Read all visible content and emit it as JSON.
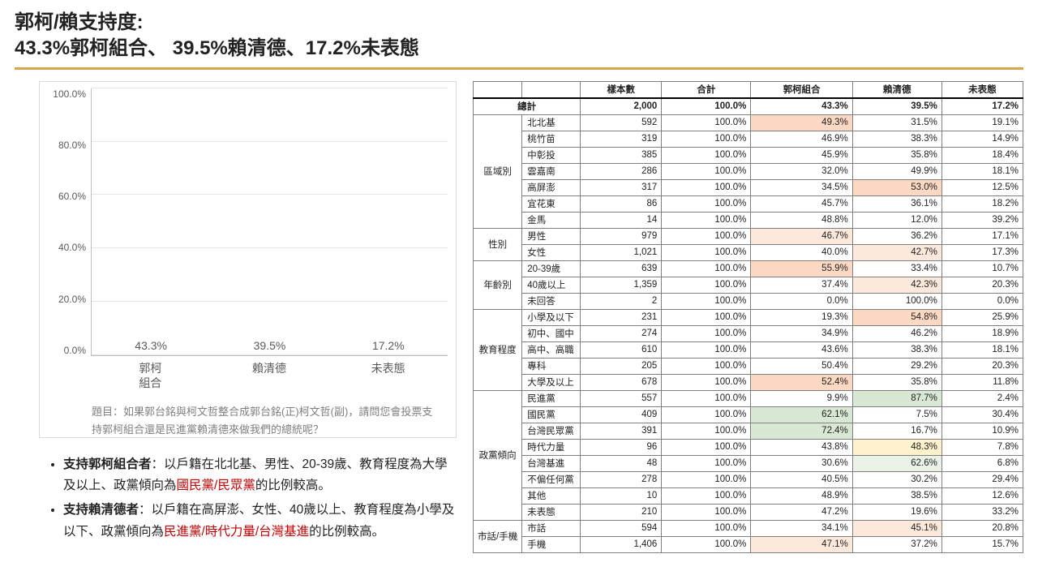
{
  "title_line1": "郭柯/賴支持度:",
  "title_line2": "43.3%郭柯組合、 39.5%賴清德、17.2%未表態",
  "chart": {
    "type": "bar",
    "ylim": [
      0,
      100
    ],
    "ytick_step": 20,
    "yticks": [
      "100.0%",
      "80.0%",
      "60.0%",
      "40.0%",
      "20.0%",
      "0.0%"
    ],
    "bars": [
      {
        "label": "郭柯\n組合",
        "value": 43.3,
        "color": "#7b7fc0",
        "text": "43.3%"
      },
      {
        "label": "賴清德",
        "value": 39.5,
        "color": "#71ad47",
        "text": "39.5%"
      },
      {
        "label": "未表態",
        "value": 17.2,
        "color": "#a6a6a6",
        "text": "17.2%"
      }
    ],
    "question_prefix": "題目：",
    "question": "如果郭台銘與柯文哲整合成郭台銘(正)柯文哲(副)，請問您會投票支持郭柯組合還是民進黨賴清德來做我們的總統呢？"
  },
  "bullets": [
    {
      "lead": "支持郭柯組合者",
      "body1": "：以戶籍在北北基、男性、20-39歲、教育程度為大學及以上、政黨傾向為",
      "red": "國民黨/民眾黨",
      "body2": "的比例較高。"
    },
    {
      "lead": "支持賴清德者",
      "body1": "：以戶籍在高屏澎、女性、40歲以上、教育程度為小學及以下、政黨傾向為",
      "red": "民進黨/時代力量/台灣基進",
      "body2": "的比例較高。"
    }
  ],
  "table": {
    "headers": [
      "",
      "",
      "樣本數",
      "合計",
      "郭柯組合",
      "賴清德",
      "未表態"
    ],
    "total_label": "總計",
    "total": [
      "2,000",
      "100.0%",
      "43.3%",
      "39.5%",
      "17.2%"
    ],
    "groups": [
      {
        "cat": "區域別",
        "rows": [
          {
            "sub": "北北基",
            "cells": [
              "592",
              "100.0%",
              "49.3%",
              "31.5%",
              "19.1%"
            ],
            "hl": {
              "2": "hl-orange"
            }
          },
          {
            "sub": "桃竹苗",
            "cells": [
              "319",
              "100.0%",
              "46.9%",
              "38.3%",
              "14.9%"
            ]
          },
          {
            "sub": "中彰投",
            "cells": [
              "385",
              "100.0%",
              "45.9%",
              "35.8%",
              "18.4%"
            ]
          },
          {
            "sub": "雲嘉南",
            "cells": [
              "286",
              "100.0%",
              "32.0%",
              "49.9%",
              "18.1%"
            ]
          },
          {
            "sub": "高屏澎",
            "cells": [
              "317",
              "100.0%",
              "34.5%",
              "53.0%",
              "12.5%"
            ],
            "hl": {
              "3": "hl-orange"
            }
          },
          {
            "sub": "宜花東",
            "cells": [
              "86",
              "100.0%",
              "45.7%",
              "36.1%",
              "18.2%"
            ]
          },
          {
            "sub": "金馬",
            "cells": [
              "14",
              "100.0%",
              "48.8%",
              "12.0%",
              "39.2%"
            ]
          }
        ]
      },
      {
        "cat": "性別",
        "rows": [
          {
            "sub": "男性",
            "cells": [
              "979",
              "100.0%",
              "46.7%",
              "36.2%",
              "17.1%"
            ],
            "hl": {
              "2": "hl-orange-lt"
            }
          },
          {
            "sub": "女性",
            "cells": [
              "1,021",
              "100.0%",
              "40.0%",
              "42.7%",
              "17.3%"
            ],
            "hl": {
              "3": "hl-orange-lt"
            }
          }
        ]
      },
      {
        "cat": "年齡別",
        "rows": [
          {
            "sub": "20-39歲",
            "cells": [
              "639",
              "100.0%",
              "55.9%",
              "33.4%",
              "10.7%"
            ],
            "hl": {
              "2": "hl-orange"
            }
          },
          {
            "sub": "40歲以上",
            "cells": [
              "1,359",
              "100.0%",
              "37.4%",
              "42.3%",
              "20.3%"
            ],
            "hl": {
              "3": "hl-orange-lt"
            }
          },
          {
            "sub": "未回答",
            "cells": [
              "2",
              "100.0%",
              "0.0%",
              "100.0%",
              "0.0%"
            ]
          }
        ]
      },
      {
        "cat": "教育程度",
        "rows": [
          {
            "sub": "小學及以下",
            "cells": [
              "231",
              "100.0%",
              "19.3%",
              "54.8%",
              "25.9%"
            ],
            "hl": {
              "3": "hl-orange"
            }
          },
          {
            "sub": "初中、國中",
            "cells": [
              "274",
              "100.0%",
              "34.9%",
              "46.2%",
              "18.9%"
            ]
          },
          {
            "sub": "高中、高職",
            "cells": [
              "610",
              "100.0%",
              "43.6%",
              "38.3%",
              "18.1%"
            ]
          },
          {
            "sub": "專科",
            "cells": [
              "205",
              "100.0%",
              "50.4%",
              "29.2%",
              "20.3%"
            ]
          },
          {
            "sub": "大學及以上",
            "cells": [
              "678",
              "100.0%",
              "52.4%",
              "35.8%",
              "11.8%"
            ],
            "hl": {
              "2": "hl-orange"
            }
          }
        ]
      },
      {
        "cat": "政黨傾向",
        "rows": [
          {
            "sub": "民進黨",
            "cells": [
              "557",
              "100.0%",
              "9.9%",
              "87.7%",
              "2.4%"
            ],
            "hl": {
              "3": "hl-green"
            }
          },
          {
            "sub": "國民黨",
            "cells": [
              "409",
              "100.0%",
              "62.1%",
              "7.5%",
              "30.4%"
            ],
            "hl": {
              "2": "hl-green"
            }
          },
          {
            "sub": "台灣民眾黨",
            "cells": [
              "391",
              "100.0%",
              "72.4%",
              "16.7%",
              "10.9%"
            ],
            "hl": {
              "2": "hl-green"
            }
          },
          {
            "sub": "時代力量",
            "cells": [
              "96",
              "100.0%",
              "43.8%",
              "48.3%",
              "7.8%"
            ],
            "hl": {
              "3": "hl-yellow"
            }
          },
          {
            "sub": "台灣基進",
            "cells": [
              "48",
              "100.0%",
              "30.6%",
              "62.6%",
              "6.8%"
            ],
            "hl": {
              "3": "hl-green-lt"
            }
          },
          {
            "sub": "不偏任何黨",
            "cells": [
              "278",
              "100.0%",
              "40.5%",
              "30.2%",
              "29.4%"
            ]
          },
          {
            "sub": "其他",
            "cells": [
              "10",
              "100.0%",
              "48.9%",
              "38.5%",
              "12.6%"
            ]
          },
          {
            "sub": "未表態",
            "cells": [
              "210",
              "100.0%",
              "47.2%",
              "19.6%",
              "33.2%"
            ]
          }
        ]
      },
      {
        "cat": "市話/手機",
        "rows": [
          {
            "sub": "市話",
            "cells": [
              "594",
              "100.0%",
              "34.1%",
              "45.1%",
              "20.8%"
            ],
            "hl": {
              "3": "hl-orange-lt"
            }
          },
          {
            "sub": "手機",
            "cells": [
              "1,406",
              "100.0%",
              "47.1%",
              "37.2%",
              "15.7%"
            ],
            "hl": {
              "2": "hl-orange-lt"
            }
          }
        ]
      }
    ]
  }
}
